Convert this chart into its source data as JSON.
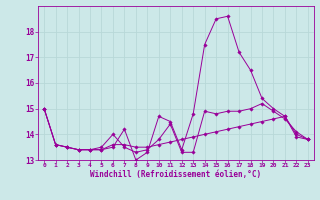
{
  "background_color": "#cce8e8",
  "grid_color": "#b8d8d8",
  "line_color": "#990099",
  "marker_color": "#990099",
  "xlabel": "Windchill (Refroidissement éolien,°C)",
  "xlabel_color": "#990099",
  "tick_color": "#990099",
  "ylim": [
    13.0,
    19.0
  ],
  "xlim": [
    -0.5,
    23.5
  ],
  "yticks": [
    13,
    14,
    15,
    16,
    17,
    18
  ],
  "xticks": [
    0,
    1,
    2,
    3,
    4,
    5,
    6,
    7,
    8,
    9,
    10,
    11,
    12,
    13,
    14,
    15,
    16,
    17,
    18,
    19,
    20,
    21,
    22,
    23
  ],
  "series": [
    [
      15.0,
      13.6,
      13.5,
      13.4,
      13.4,
      13.4,
      13.5,
      14.2,
      13.0,
      13.3,
      14.7,
      14.5,
      13.4,
      14.8,
      17.5,
      18.5,
      18.6,
      17.2,
      16.5,
      15.4,
      15.0,
      14.7,
      13.9,
      13.8
    ],
    [
      15.0,
      13.6,
      13.5,
      13.4,
      13.4,
      13.5,
      14.0,
      13.5,
      13.3,
      13.4,
      13.8,
      14.4,
      13.3,
      13.3,
      14.9,
      14.8,
      14.9,
      14.9,
      15.0,
      15.2,
      14.9,
      14.6,
      14.1,
      13.8
    ],
    [
      15.0,
      13.6,
      13.5,
      13.4,
      13.4,
      13.4,
      13.6,
      13.6,
      13.5,
      13.5,
      13.6,
      13.7,
      13.8,
      13.9,
      14.0,
      14.1,
      14.2,
      14.3,
      14.4,
      14.5,
      14.6,
      14.7,
      14.0,
      13.8
    ]
  ]
}
